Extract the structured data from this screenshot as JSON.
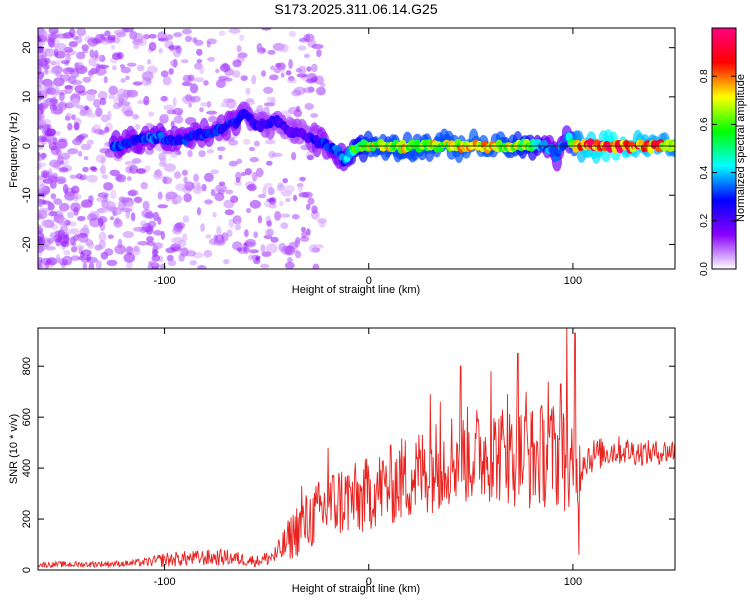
{
  "title": "S173.2025.311.06.14.G25",
  "chart_data": [
    {
      "type": "heatmap",
      "title": "S173.2025.311.06.14.G25",
      "xlabel": "Height of straight line (km)",
      "ylabel": "Frequency (Hz)",
      "xlim": [
        -162,
        150
      ],
      "ylim": [
        -25,
        24
      ],
      "xticks": [
        -100,
        0,
        100
      ],
      "yticks": [
        -20,
        -10,
        0,
        10,
        20
      ],
      "colorbar": {
        "label": "Normalized spectral amplitude",
        "range": [
          0,
          1
        ],
        "ticks": [
          "0.0",
          "0.2",
          "0.4",
          "0.6",
          "0.8"
        ],
        "colors": [
          "#ffffff",
          "#8a00ff",
          "#0000ff",
          "#00ffff",
          "#00ff00",
          "#ffff00",
          "#ff0000",
          "#ff0080"
        ]
      },
      "ridge": {
        "x": [
          -125,
          -115,
          -105,
          -95,
          -85,
          -75,
          -65,
          -60,
          -55,
          -45,
          -40,
          -35,
          -30,
          -25,
          -20,
          -15,
          -12,
          -8,
          -5,
          0,
          10,
          30,
          50,
          70,
          80,
          85,
          90,
          92,
          95,
          98,
          100,
          105,
          120,
          140,
          150
        ],
        "freq": [
          0,
          1,
          2,
          1,
          2,
          3,
          5,
          7,
          4,
          5,
          3,
          3,
          2,
          1,
          0,
          -1,
          -3,
          -1,
          0,
          0,
          0,
          0,
          0,
          0,
          0,
          0,
          -1,
          -2,
          0,
          2,
          0,
          0,
          0,
          0,
          0
        ],
        "amplitude": [
          0.35,
          0.3,
          0.35,
          0.3,
          0.3,
          0.3,
          0.3,
          0.25,
          0.25,
          0.25,
          0.2,
          0.25,
          0.2,
          0.3,
          0.3,
          0.35,
          0.35,
          0.55,
          0.6,
          0.7,
          0.72,
          0.72,
          0.75,
          0.72,
          0.6,
          0.4,
          0.35,
          0.35,
          0.35,
          0.4,
          0.7,
          0.9,
          0.95,
          0.85,
          0.8
        ]
      }
    },
    {
      "type": "line",
      "title": "",
      "xlabel": "Height of straight line (km)",
      "ylabel": "SNR (10 * v/v)",
      "xlim": [
        -162,
        150
      ],
      "ylim": [
        0,
        950
      ],
      "xticks": [
        -100,
        0,
        100
      ],
      "yticks": [
        0,
        200,
        400,
        600,
        800
      ],
      "color": "#e8231f",
      "series": [
        {
          "name": "SNR",
          "x": [
            -162,
            -150,
            -140,
            -130,
            -120,
            -110,
            -105,
            -100,
            -90,
            -80,
            -70,
            -60,
            -55,
            -50,
            -45,
            -40,
            -35,
            -30,
            -25,
            -20,
            -15,
            -10,
            -5,
            0,
            5,
            10,
            15,
            20,
            25,
            30,
            35,
            40,
            45,
            50,
            55,
            60,
            65,
            70,
            75,
            80,
            85,
            90,
            95,
            100,
            105,
            110,
            115,
            120,
            125,
            130,
            135,
            140,
            145,
            150
          ],
          "values": [
            20,
            22,
            22,
            24,
            25,
            30,
            35,
            40,
            45,
            48,
            50,
            40,
            35,
            45,
            60,
            110,
            160,
            190,
            220,
            250,
            270,
            280,
            270,
            300,
            320,
            330,
            350,
            370,
            380,
            400,
            420,
            440,
            450,
            450,
            455,
            460,
            455,
            450,
            445,
            440,
            450,
            460,
            430,
            330,
            440,
            450,
            460,
            470,
            470,
            465,
            460,
            460,
            465,
            470
          ],
          "spread": [
            10,
            12,
            12,
            12,
            12,
            16,
            22,
            30,
            30,
            32,
            32,
            26,
            22,
            30,
            45,
            80,
            110,
            120,
            130,
            140,
            150,
            150,
            150,
            150,
            150,
            160,
            170,
            180,
            180,
            180,
            185,
            190,
            195,
            195,
            195,
            195,
            200,
            200,
            205,
            210,
            210,
            210,
            220,
            220,
            80,
            70,
            60,
            60,
            55,
            55,
            50,
            50,
            50,
            50
          ],
          "spikes": [
            {
              "x": -33,
              "value": 330
            },
            {
              "x": -20,
              "value": 480
            },
            {
              "x": 30,
              "value": 690
            },
            {
              "x": 35,
              "value": 660
            },
            {
              "x": 45,
              "value": 800
            },
            {
              "x": 60,
              "value": 780
            },
            {
              "x": 68,
              "value": 690
            },
            {
              "x": 73,
              "value": 850
            },
            {
              "x": 77,
              "value": 700
            },
            {
              "x": 88,
              "value": 740
            },
            {
              "x": 94,
              "value": 730
            },
            {
              "x": 97,
              "value": 950
            },
            {
              "x": 101,
              "value": 930
            },
            {
              "x": 103,
              "value": 60
            }
          ]
        }
      ]
    }
  ]
}
